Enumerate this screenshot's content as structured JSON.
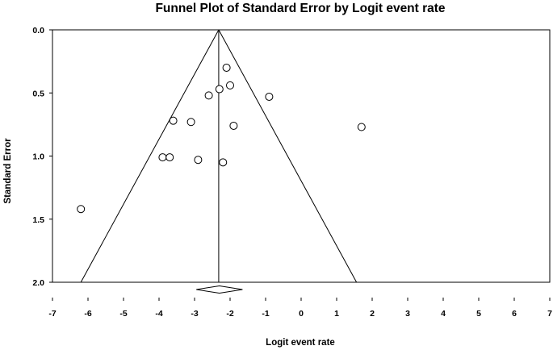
{
  "chart_data": {
    "type": "scatter",
    "title": "Funnel Plot of Standard Error by Logit event rate",
    "xlabel": "Logit event rate",
    "ylabel": "Standard Error",
    "xlim": [
      -7,
      7
    ],
    "ylim": [
      0,
      2
    ],
    "y_inverted": true,
    "grid": false,
    "x_ticks": [
      "-7",
      "-6",
      "-5",
      "-4",
      "-3",
      "-2",
      "-1",
      "0",
      "1",
      "2",
      "3",
      "4",
      "5",
      "6",
      "7"
    ],
    "y_ticks": [
      "0.0",
      "0.5",
      "1.0",
      "1.5",
      "2.0"
    ],
    "points": [
      {
        "x": -2.1,
        "y": 0.3
      },
      {
        "x": -2.0,
        "y": 0.44
      },
      {
        "x": -2.3,
        "y": 0.47
      },
      {
        "x": -2.6,
        "y": 0.52
      },
      {
        "x": -0.9,
        "y": 0.53
      },
      {
        "x": -3.6,
        "y": 0.72
      },
      {
        "x": -3.1,
        "y": 0.73
      },
      {
        "x": -1.9,
        "y": 0.76
      },
      {
        "x": 1.7,
        "y": 0.77
      },
      {
        "x": -3.9,
        "y": 1.01
      },
      {
        "x": -3.7,
        "y": 1.01
      },
      {
        "x": -2.9,
        "y": 1.03
      },
      {
        "x": -2.2,
        "y": 1.05
      },
      {
        "x": -6.2,
        "y": 1.42
      }
    ],
    "pooled_estimate": -2.32,
    "funnel_bottom": [
      -6.2,
      1.56
    ],
    "summary_diamond": {
      "center": -2.3,
      "lower": -2.95,
      "upper": -1.65
    }
  }
}
